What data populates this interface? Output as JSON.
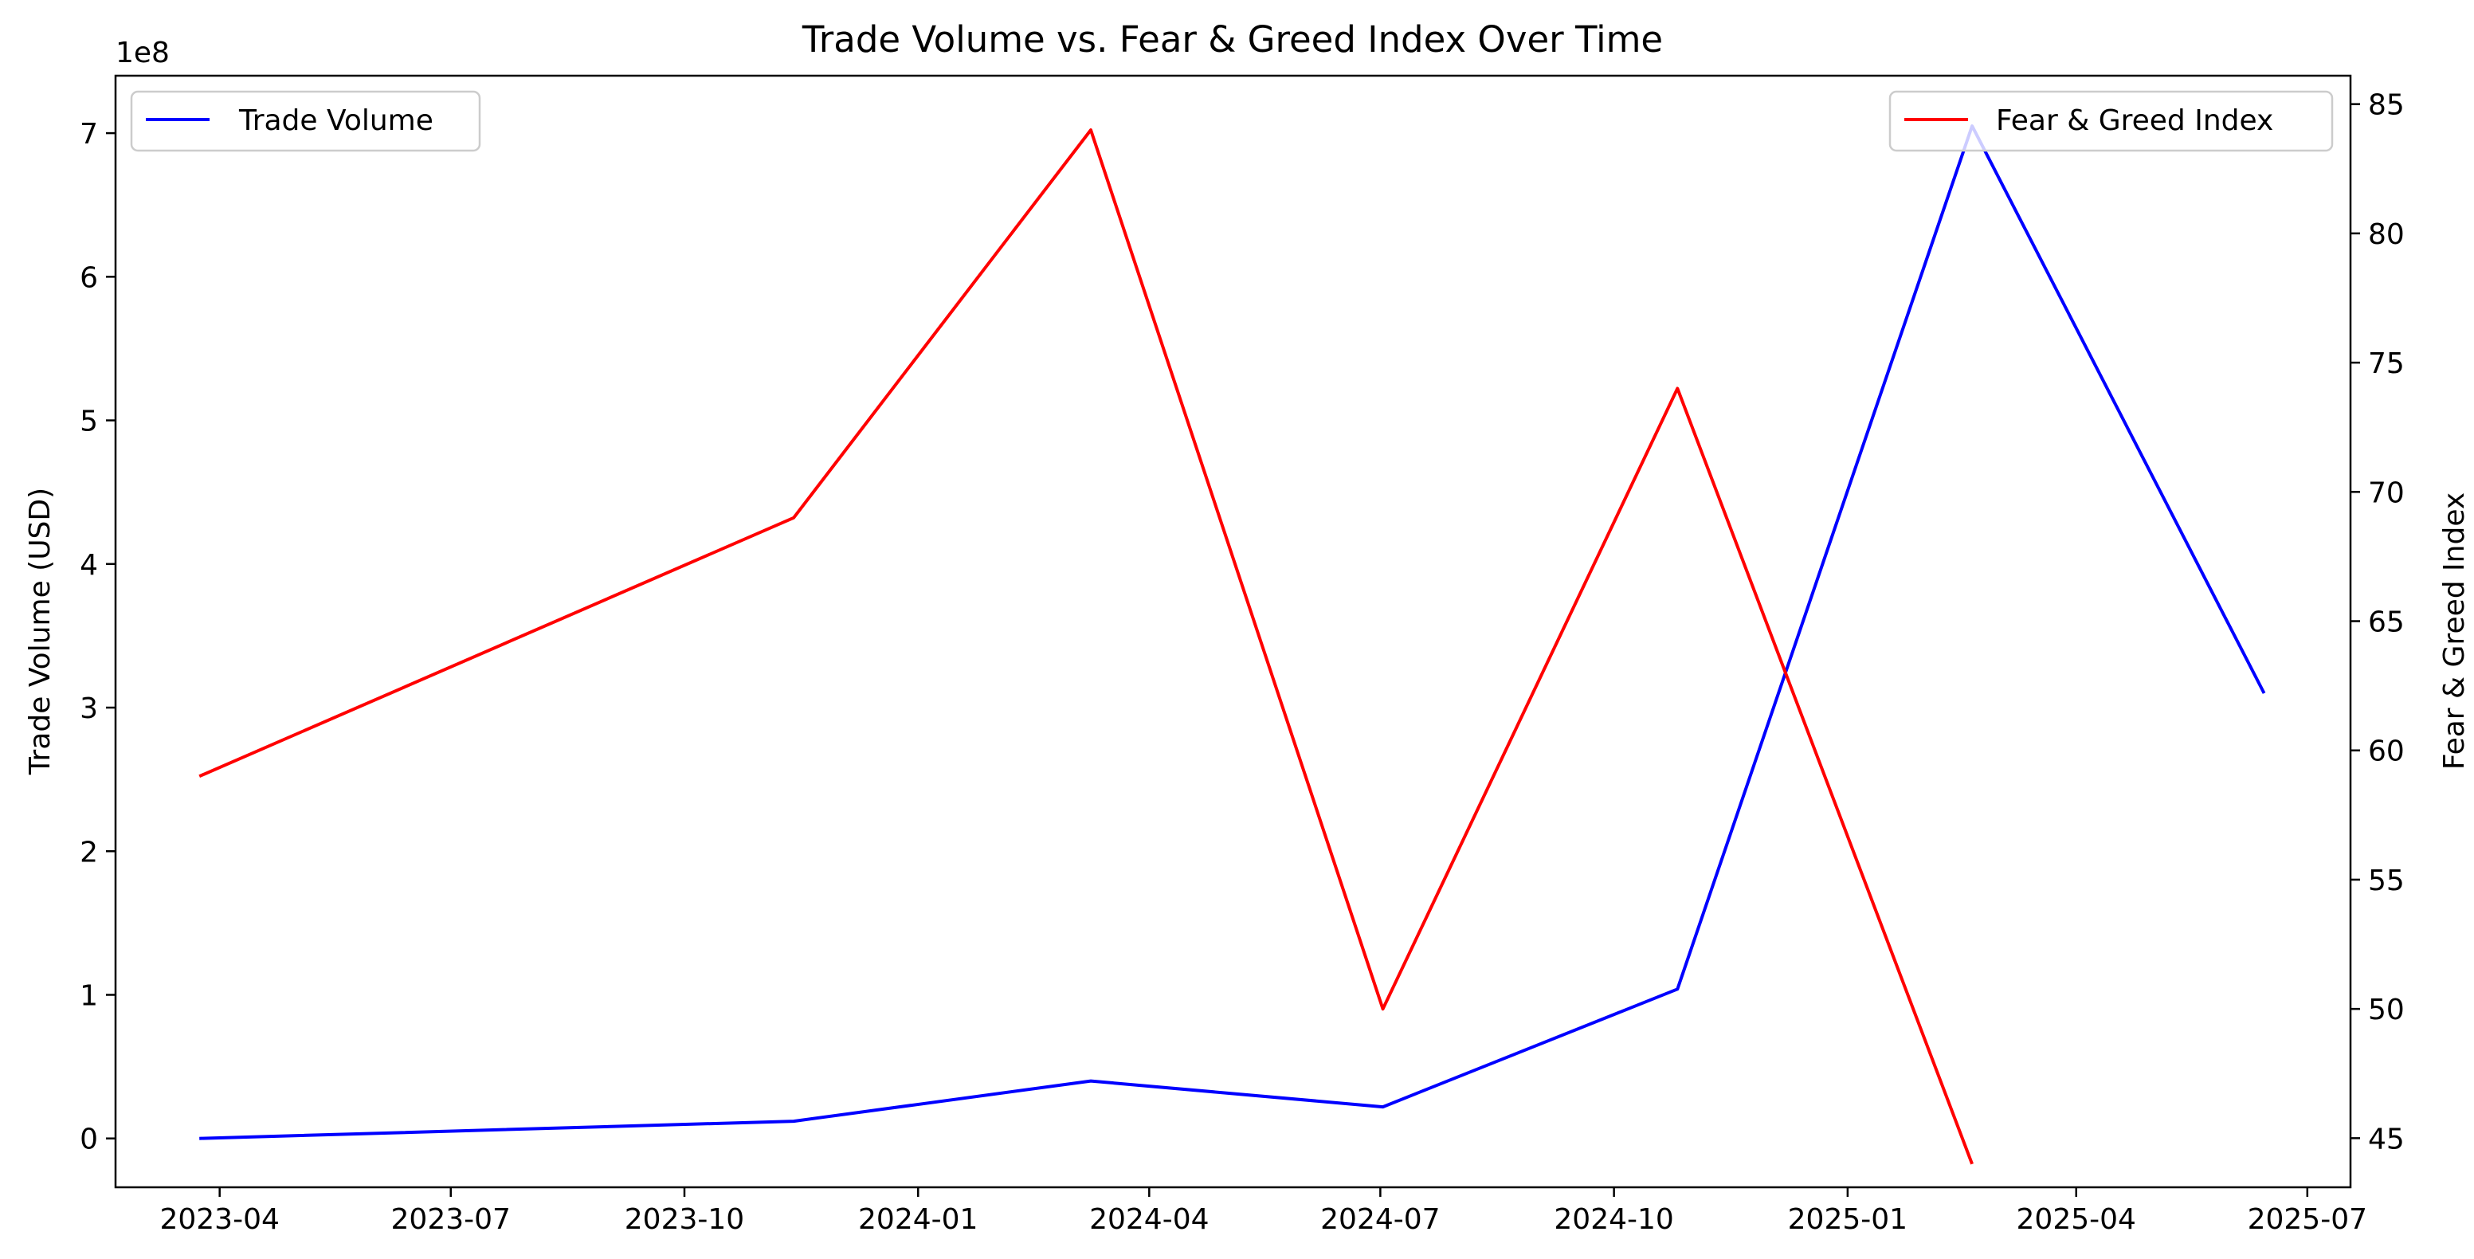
{
  "chart_data": {
    "type": "line",
    "title": "Trade Volume vs. Fear & Greed Index Over Time",
    "ylabel_left": "Trade Volume (USD)",
    "ylabel_right": "Fear & Greed Index",
    "y_left_offset_label": "1e8",
    "x_ticks": [
      "2023-04",
      "2023-07",
      "2023-10",
      "2024-01",
      "2024-04",
      "2024-07",
      "2024-10",
      "2025-01",
      "2025-04",
      "2025-07"
    ],
    "y_left_ticks": [
      "0",
      "1",
      "2",
      "3",
      "4",
      "5",
      "6",
      "7"
    ],
    "y_right_ticks": [
      "45",
      "50",
      "55",
      "60",
      "65",
      "70",
      "75",
      "80",
      "85"
    ],
    "x_range": [
      "2023-02-19",
      "2025-07-18"
    ],
    "y_left_range_1e8": [
      -0.34,
      7.4
    ],
    "y_right_range": [
      43.1,
      86.1
    ],
    "grid": false,
    "series": [
      {
        "name": "Trade Volume",
        "axis": "left",
        "color": "#0000ff",
        "x": [
          "2023-03-24",
          "2023-11-13",
          "2024-03-09",
          "2024-07-02",
          "2024-10-26",
          "2025-02-19",
          "2025-06-14"
        ],
        "y": [
          0,
          12000000,
          40000000,
          22000000,
          104000000,
          705000000,
          310000000
        ]
      },
      {
        "name": "Fear & Greed Index",
        "axis": "right",
        "color": "#ff0000",
        "x": [
          "2023-03-24",
          "2023-11-13",
          "2024-03-09",
          "2024-07-02",
          "2024-10-26",
          "2025-02-19"
        ],
        "y": [
          59,
          69,
          84,
          50,
          74,
          44
        ]
      }
    ],
    "legends": [
      {
        "placement": "upper-left",
        "entries": [
          "Trade Volume"
        ]
      },
      {
        "placement": "upper-right",
        "entries": [
          "Fear & Greed Index"
        ]
      }
    ]
  }
}
